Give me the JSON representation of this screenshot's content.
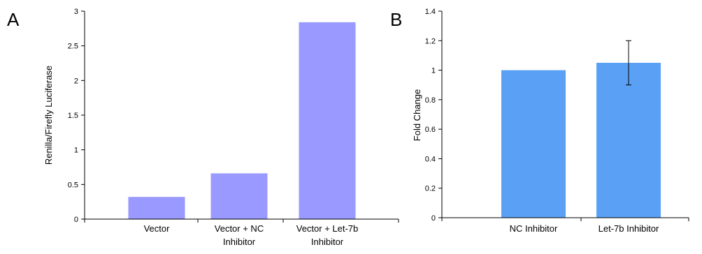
{
  "chart_data": [
    {
      "type": "bar",
      "panel_label": "A",
      "ylabel": "Renilla/Firefly Luciferase",
      "categories": [
        [
          "Vector"
        ],
        [
          "Vector + NC",
          "Inhibitor"
        ],
        [
          "Vector + Let-7b",
          "Inhibitor"
        ]
      ],
      "values": [
        0.32,
        0.66,
        2.84
      ],
      "ylim": [
        0,
        3
      ],
      "yticks": [
        "0",
        "0.5",
        "1",
        "1.5",
        "2",
        "2.5",
        "3"
      ],
      "bar_color": "#9999ff"
    },
    {
      "type": "bar",
      "panel_label": "B",
      "ylabel": "Fold Change",
      "categories": [
        [
          "NC Inhibitor"
        ],
        [
          "Let-7b Inhibitor"
        ]
      ],
      "values": [
        1.0,
        1.05
      ],
      "error": [
        null,
        0.15
      ],
      "ylim": [
        0,
        1.4
      ],
      "yticks": [
        "0",
        "0.2",
        "0.4",
        "0.6",
        "0.8",
        "1",
        "1.2",
        "1.4"
      ],
      "bar_color": "#5aa0f5"
    }
  ]
}
